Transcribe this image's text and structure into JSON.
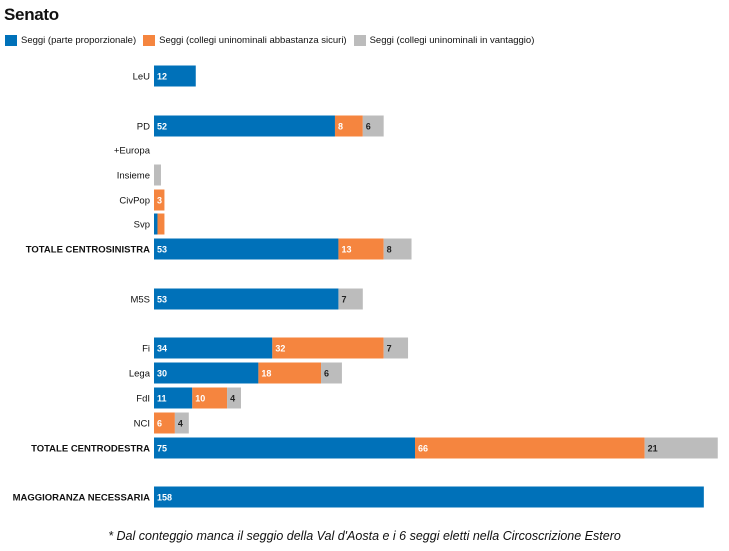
{
  "title": "Senato",
  "legend": [
    {
      "label": "Seggi (parte proporzionale)",
      "color": "#0071b9"
    },
    {
      "label": "Seggi (collegi uninominali abbastanza sicuri)",
      "color": "#f5853f"
    },
    {
      "label": "Seggi (collegi uninominali in vantaggio)",
      "color": "#bcbcbc"
    }
  ],
  "footnote": "* Dal conteggio manca il seggio della Val d'Aosta e i 6 seggi eletti nella Circoscrizione Estero",
  "chart_data": {
    "type": "bar",
    "orientation": "horizontal",
    "stacked": true,
    "categories": [
      "LeU",
      "PD",
      "+Europa",
      "Insieme",
      "CivPop",
      "Svp",
      "TOTALE CENTROSINISTRA",
      "M5S",
      "Fi",
      "Lega",
      "FdI",
      "NCI",
      "TOTALE CENTRODESTRA",
      "MAGGIORANZA NECESSARIA"
    ],
    "bold_categories": [
      "TOTALE CENTROSINISTRA",
      "TOTALE CENTRODESTRA",
      "MAGGIORANZA NECESSARIA"
    ],
    "series": [
      {
        "name": "Seggi (parte proporzionale)",
        "color": "#0071b9",
        "values": [
          12,
          52,
          0,
          0,
          0,
          1,
          53,
          53,
          34,
          30,
          11,
          0,
          75,
          158
        ]
      },
      {
        "name": "Seggi (collegi uninominali abbastanza sicuri)",
        "color": "#f5853f",
        "values": [
          0,
          8,
          0,
          0,
          3,
          2,
          13,
          0,
          32,
          18,
          10,
          6,
          66,
          0
        ]
      },
      {
        "name": "Seggi (collegi uninominali in vantaggio)",
        "color": "#bcbcbc",
        "values": [
          0,
          6,
          0,
          2,
          0,
          0,
          8,
          7,
          7,
          6,
          4,
          4,
          21,
          0
        ]
      }
    ],
    "data_labels": [
      [
        "12",
        "",
        ""
      ],
      [
        "52",
        "8",
        "6"
      ],
      [
        "",
        "",
        ""
      ],
      [
        "",
        "",
        ""
      ],
      [
        "",
        "3",
        ""
      ],
      [
        "",
        "",
        ""
      ],
      [
        "53",
        "13",
        "8"
      ],
      [
        "53",
        "",
        "7"
      ],
      [
        "34",
        "32",
        "7"
      ],
      [
        "30",
        "18",
        "6"
      ],
      [
        "11",
        "10",
        "4"
      ],
      [
        "",
        "6",
        "4"
      ],
      [
        "75",
        "66",
        "21"
      ],
      [
        "158",
        "",
        ""
      ]
    ],
    "xlim": [
      0,
      162
    ],
    "grid": false,
    "legend_position": "top-left"
  }
}
